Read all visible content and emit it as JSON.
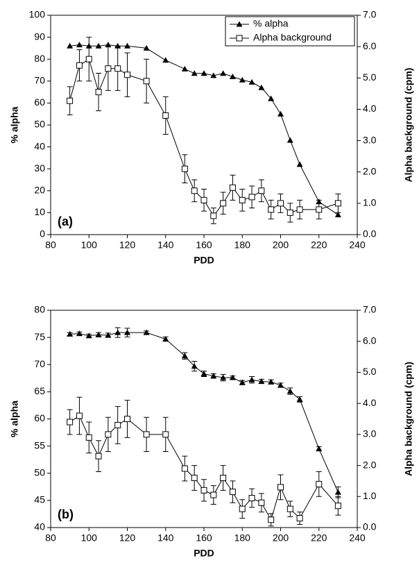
{
  "chart_data": [
    {
      "type": "line",
      "annotation": "(a)",
      "xlabel": "PDD",
      "ylabel": "% alpha",
      "y2label": "Alpha background (cpm)",
      "x": [
        90,
        95,
        100,
        105,
        110,
        115,
        120,
        130,
        140,
        150,
        155,
        160,
        165,
        170,
        175,
        180,
        185,
        190,
        195,
        200,
        205,
        210,
        220,
        230
      ],
      "xlim": [
        80,
        240
      ],
      "xticks": [
        80,
        100,
        120,
        140,
        160,
        180,
        200,
        220,
        240
      ],
      "ylim": [
        0,
        100
      ],
      "yticks": [
        0,
        10,
        20,
        30,
        40,
        50,
        60,
        70,
        80,
        90,
        100
      ],
      "y2lim": [
        0,
        7
      ],
      "y2ticks": [
        {
          "value": 0,
          "label": "0.0"
        },
        {
          "value": 1,
          "label": "1.0"
        },
        {
          "value": 2,
          "label": "2.0"
        },
        {
          "value": 3,
          "label": "3.0"
        },
        {
          "value": 4,
          "label": "4.0"
        },
        {
          "value": 5,
          "label": "5.0"
        },
        {
          "value": 6,
          "label": "6.0"
        },
        {
          "value": 7,
          "label": "7.0"
        }
      ],
      "legend": "upper right",
      "series": [
        {
          "name": "% alpha",
          "color": "#000000",
          "marker": "triangle",
          "values": [
            86,
            86.5,
            86,
            86,
            86.5,
            86,
            86,
            85,
            79.5,
            75.5,
            73.5,
            73.5,
            72.5,
            73.5,
            72,
            70.5,
            69.5,
            67,
            62,
            55,
            43,
            32,
            15,
            9
          ]
        },
        {
          "name": "Alpha background",
          "color": "#000000",
          "marker": "square",
          "axis": "y2",
          "values": [
            4.27,
            5.4,
            5.6,
            4.55,
            5.3,
            5.3,
            5.1,
            4.9,
            3.8,
            2.1,
            1.4,
            1.1,
            0.6,
            1.0,
            1.5,
            1.1,
            1.2,
            1.4,
            0.8,
            1.0,
            0.7,
            0.8,
            0.8,
            1.0
          ],
          "errors": [
            0.45,
            0.5,
            0.7,
            0.6,
            0.7,
            0.7,
            0.7,
            0.7,
            0.6,
            0.45,
            0.35,
            0.35,
            0.25,
            0.35,
            0.4,
            0.35,
            0.35,
            0.35,
            0.3,
            0.3,
            0.3,
            0.3,
            0.3,
            0.3
          ]
        }
      ]
    },
    {
      "type": "line",
      "annotation": "(b)",
      "xlabel": "PDD",
      "ylabel": "% alpha",
      "y2label": "Alpha background (cpm)",
      "x": [
        90,
        95,
        100,
        105,
        110,
        115,
        120,
        130,
        140,
        150,
        155,
        160,
        165,
        170,
        175,
        180,
        185,
        190,
        195,
        200,
        205,
        210,
        220,
        230
      ],
      "xlim": [
        80,
        240
      ],
      "xticks": [
        80,
        100,
        120,
        140,
        160,
        180,
        200,
        220,
        240
      ],
      "ylim": [
        40,
        80
      ],
      "yticks": [
        40,
        45,
        50,
        55,
        60,
        65,
        70,
        75,
        80
      ],
      "y2lim": [
        0,
        7
      ],
      "y2ticks": [
        {
          "value": 0,
          "label": "0.0"
        },
        {
          "value": 1,
          "label": "1.0"
        },
        {
          "value": 2,
          "label": "2.0"
        },
        {
          "value": 3,
          "label": "3.0"
        },
        {
          "value": 4,
          "label": "4.0"
        },
        {
          "value": 5,
          "label": "5.0"
        },
        {
          "value": 6,
          "label": "6.0"
        },
        {
          "value": 7,
          "label": "7.0"
        }
      ],
      "legend": "none",
      "series": [
        {
          "name": "% alpha",
          "color": "#000000",
          "marker": "triangle",
          "values": [
            75.6,
            75.7,
            75.3,
            75.5,
            75.4,
            75.9,
            75.9,
            75.9,
            74.7,
            71.6,
            69.7,
            68.3,
            67.9,
            67.6,
            67.6,
            66.7,
            67.2,
            66.9,
            66.8,
            66.2,
            65.1,
            63.6,
            54.5,
            46.5
          ],
          "errors": [
            0.3,
            0.3,
            0.3,
            0.4,
            0.4,
            0.9,
            0.8,
            0.3,
            0.4,
            0.6,
            0.9,
            0.5,
            0.4,
            0.6,
            0.3,
            0.4,
            0.6,
            0.4,
            0.4,
            0.4,
            0.6,
            0.5,
            0.4,
            1.0
          ]
        },
        {
          "name": "Alpha background",
          "color": "#000000",
          "marker": "square",
          "axis": "y2",
          "values": [
            3.4,
            3.6,
            2.9,
            2.3,
            3.0,
            3.3,
            3.5,
            3.0,
            3.0,
            1.9,
            1.6,
            1.2,
            1.05,
            1.6,
            1.15,
            0.6,
            0.95,
            0.8,
            0.25,
            1.3,
            0.6,
            0.3,
            1.4,
            0.7
          ],
          "errors": [
            0.4,
            0.6,
            0.5,
            0.5,
            0.55,
            0.6,
            0.6,
            0.55,
            0.55,
            0.4,
            0.4,
            0.35,
            0.3,
            0.4,
            0.35,
            0.3,
            0.3,
            0.3,
            0.2,
            0.4,
            0.25,
            0.2,
            0.4,
            0.3
          ]
        }
      ]
    }
  ]
}
